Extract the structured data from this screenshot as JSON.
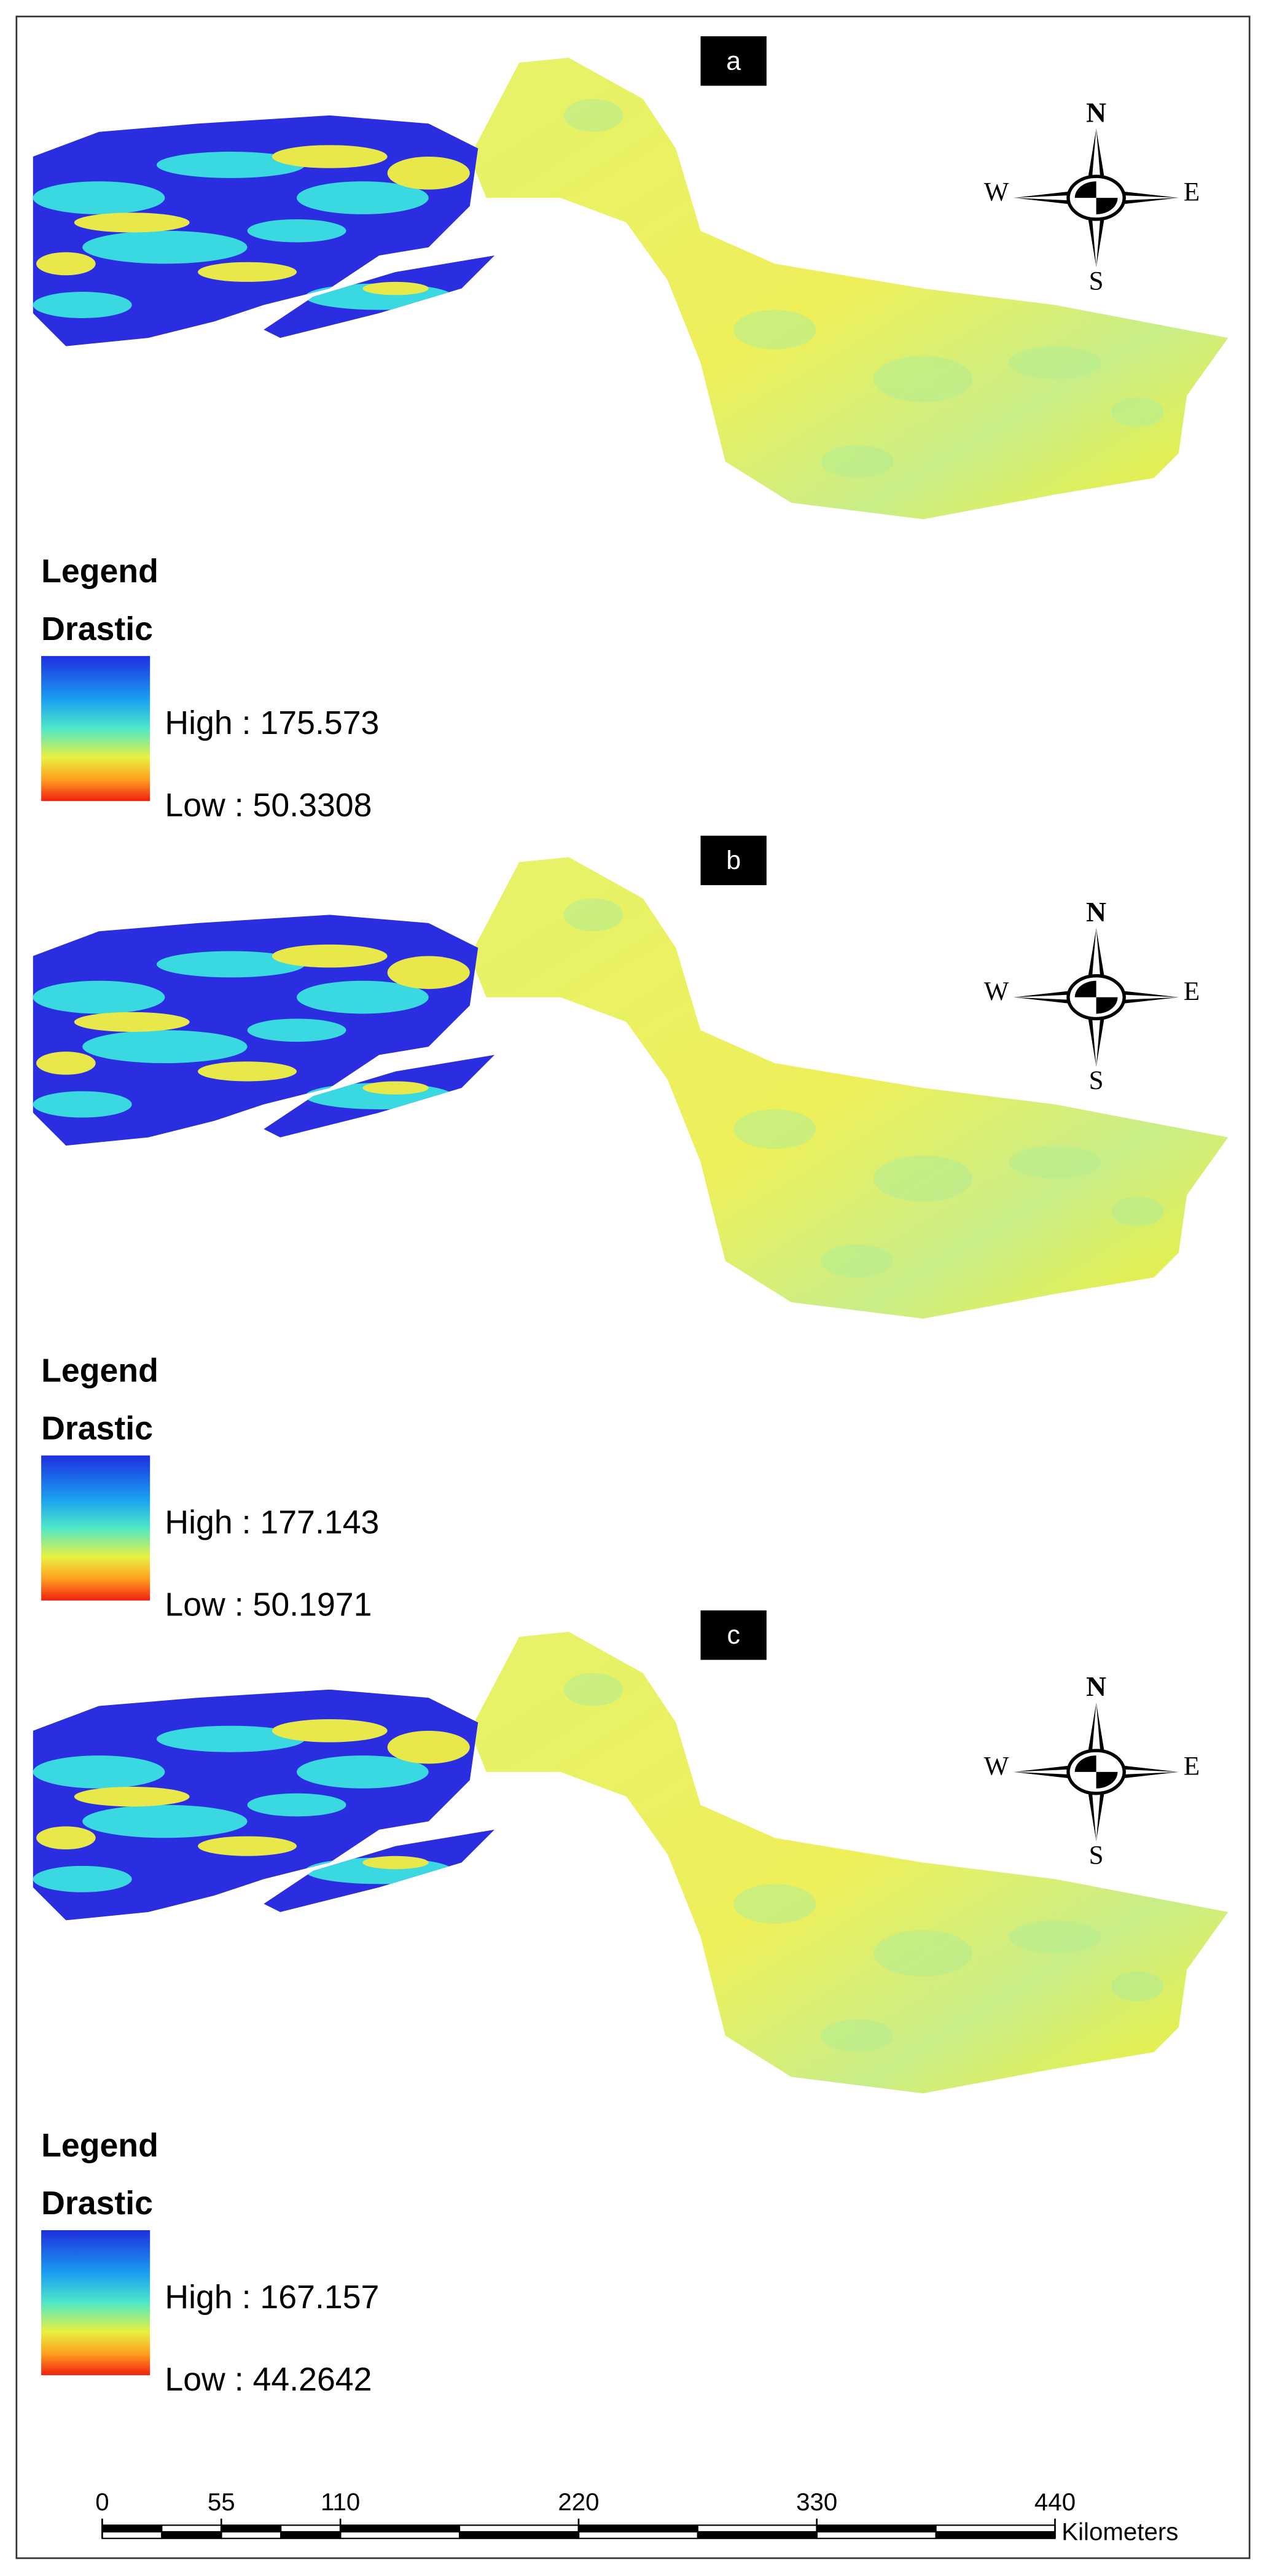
{
  "panels": [
    {
      "label": "a",
      "legend_title": "Legend",
      "legend_field": "Drastic",
      "high": "High : 175.573",
      "low": "Low : 50.3308",
      "compass": {
        "n": "N",
        "e": "E",
        "s": "S",
        "w": "W"
      }
    },
    {
      "label": "b",
      "legend_title": "Legend",
      "legend_field": "Drastic",
      "high": "High : 177.143",
      "low": "Low : 50.1971",
      "compass": {
        "n": "N",
        "e": "E",
        "s": "S",
        "w": "W"
      }
    },
    {
      "label": "c",
      "legend_title": "Legend",
      "legend_field": "Drastic",
      "high": "High : 167.157",
      "low": "Low : 44.2642",
      "compass": {
        "n": "N",
        "e": "E",
        "s": "S",
        "w": "W"
      }
    }
  ],
  "scale_bar": {
    "ticks": [
      0,
      55,
      110,
      220,
      330,
      440
    ],
    "unit": "Kilometers"
  }
}
